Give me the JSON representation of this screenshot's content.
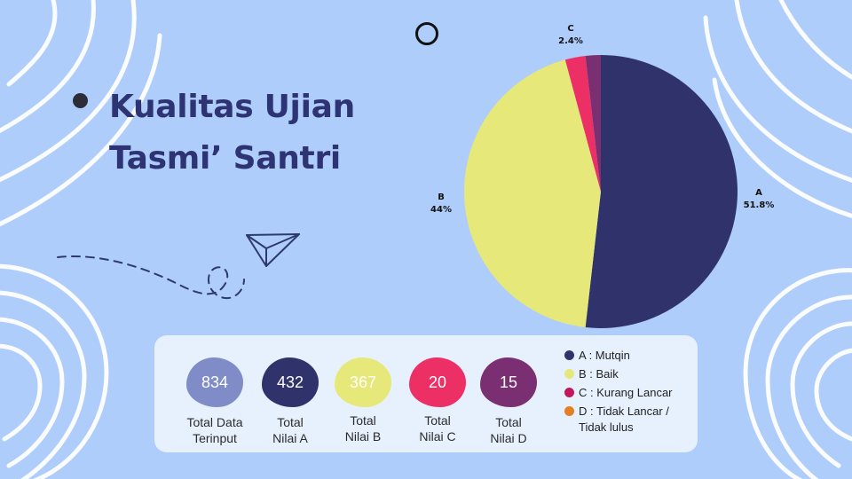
{
  "title": {
    "line1": "Kualitas Ujian",
    "line2": "Tasmi’ Santri"
  },
  "chart_data": {
    "type": "pie",
    "categories": [
      "A",
      "B",
      "C",
      "D"
    ],
    "values": [
      51.8,
      44,
      2.4,
      1.8
    ],
    "value_labels": [
      "51.8%",
      "44%",
      "2.4%",
      ""
    ],
    "colors": [
      "#30336b",
      "#e6e87a",
      "#ec2f64",
      "#7a2f73"
    ]
  },
  "stats": [
    {
      "value": "834",
      "label_line1": "Total Data",
      "label_line2": "Terinput",
      "color": "#7f8cc8"
    },
    {
      "value": "432",
      "label_line1": "Total",
      "label_line2": "Nilai A",
      "color": "#30336b"
    },
    {
      "value": "367",
      "label_line1": "Total",
      "label_line2": "Nilai B",
      "color": "#e6e87a"
    },
    {
      "value": "20",
      "label_line1": "Total",
      "label_line2": "Nilai C",
      "color": "#ec2f64"
    },
    {
      "value": "15",
      "label_line1": "Total",
      "label_line2": "Nilai D",
      "color": "#7a2f73"
    }
  ],
  "legend": [
    {
      "line1": "A : Mutqin",
      "line2": "",
      "color": "#30336b"
    },
    {
      "line1": "B : Baik",
      "line2": "",
      "color": "#e6e87a"
    },
    {
      "line1": "C : Kurang Lancar",
      "line2": "",
      "color": "#c2185b"
    },
    {
      "line1": "D : Tidak Lancar /",
      "line2": "Tidak lulus",
      "color": "#e67e22"
    }
  ]
}
